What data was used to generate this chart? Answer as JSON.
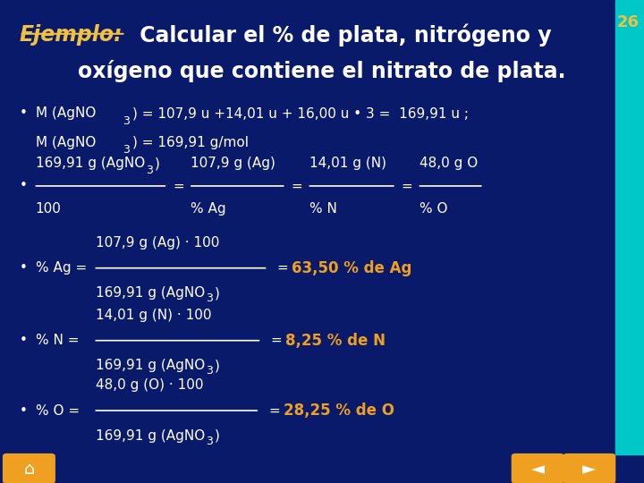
{
  "bg_color": "#0a1a6b",
  "title_ejemplo": "Ejemplo:",
  "title_rest": " Calcular el % de plata, nitrógeno y",
  "title_line2": "oxígeno que contiene el nitrato de plata.",
  "title_color": "#f0c040",
  "title_rest_color": "#ffffff",
  "slide_number": "26",
  "slide_num_color": "#f0c040",
  "right_bar_color": "#00c8c8",
  "bottom_bar_color": "#f0a020",
  "white_text": "#ffffff",
  "orange_text": "#f0a020"
}
